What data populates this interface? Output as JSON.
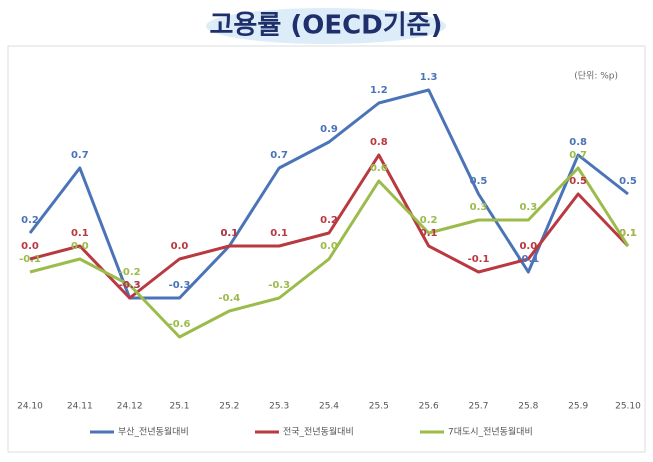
{
  "chart_data": {
    "type": "line",
    "title": "고용률 (OECD기준)",
    "unit": "(단위: %p)",
    "categories": [
      "24.10",
      "24.11",
      "24.12",
      "25.1",
      "25.2",
      "25.3",
      "25.4",
      "25.5",
      "25.6",
      "25.7",
      "25.8",
      "25.9",
      "25.10"
    ],
    "ylim": [
      -1.0,
      1.5
    ],
    "series": [
      {
        "name": "부산_전년동월대비",
        "color": "#4a73b8",
        "values": [
          0.2,
          0.7,
          -0.3,
          -0.3,
          0.1,
          0.7,
          0.9,
          1.2,
          1.3,
          0.5,
          -0.1,
          0.8,
          0.5
        ],
        "value_labels": [
          "0.2",
          "0.7",
          "-0.3",
          "-0.3",
          "0.1",
          "0.7",
          "0.9",
          "1.2",
          "1.3",
          "0.5",
          "-0.1",
          "0.8",
          "0.5"
        ]
      },
      {
        "name": "전국_전년동월대비",
        "color": "#b8393f",
        "values": [
          0.0,
          0.1,
          -0.3,
          0.0,
          0.1,
          0.1,
          0.2,
          0.8,
          0.1,
          -0.1,
          0.0,
          0.5,
          0.1
        ],
        "value_labels": [
          "0.0",
          "0.1",
          "-0.3",
          "0.0",
          "0.1",
          "0.1",
          "0.2",
          "0.8",
          "0.1",
          "-0.1",
          "0.0",
          "0.5",
          "0.1"
        ]
      },
      {
        "name": "7대도시_전년동월대비",
        "color": "#9bbb4a",
        "values": [
          -0.1,
          0.0,
          -0.2,
          -0.6,
          -0.4,
          -0.3,
          0.0,
          0.6,
          0.2,
          0.3,
          0.3,
          0.7,
          0.1
        ],
        "value_labels": [
          "-0.1",
          "0.0",
          "-0.2",
          "-0.6",
          "-0.4",
          "-0.3",
          "0.0",
          "0.6",
          "0.2",
          "0.3",
          "0.3",
          "0.7",
          "0.1"
        ]
      }
    ]
  }
}
